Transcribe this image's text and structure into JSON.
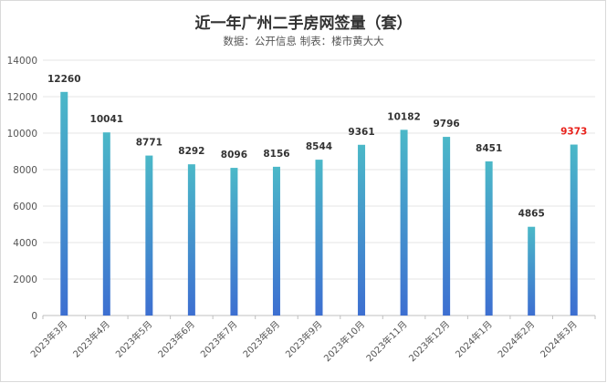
{
  "chart_data": {
    "type": "bar",
    "title": "近一年广州二手房网签量（套）",
    "subtitle": "数据：公开信息    制表：楼市黄大大",
    "categories": [
      "2023年3月",
      "2023年4月",
      "2023年5月",
      "2023年6月",
      "2023年7月",
      "2023年8月",
      "2023年9月",
      "2023年10月",
      "2023年11月",
      "2023年12月",
      "2024年1月",
      "2024年2月",
      "2024年3月"
    ],
    "values": [
      12260,
      10041,
      8771,
      8292,
      8096,
      8156,
      8544,
      9361,
      10182,
      9796,
      8451,
      4865,
      9373
    ],
    "ylim": [
      0,
      14000
    ],
    "yticks": [
      0,
      2000,
      4000,
      6000,
      8000,
      10000,
      12000,
      14000
    ],
    "xlabel": "",
    "ylabel": "",
    "grid": true,
    "legend": "none",
    "highlight_index": 12,
    "colors": {
      "bar_top": "#4bb8c8",
      "bar_bottom": "#3d6fd1",
      "label": "#333333",
      "highlight_label": "#e8201a",
      "grid": "#e6e6e6",
      "axis": "#bfbfbf"
    }
  }
}
